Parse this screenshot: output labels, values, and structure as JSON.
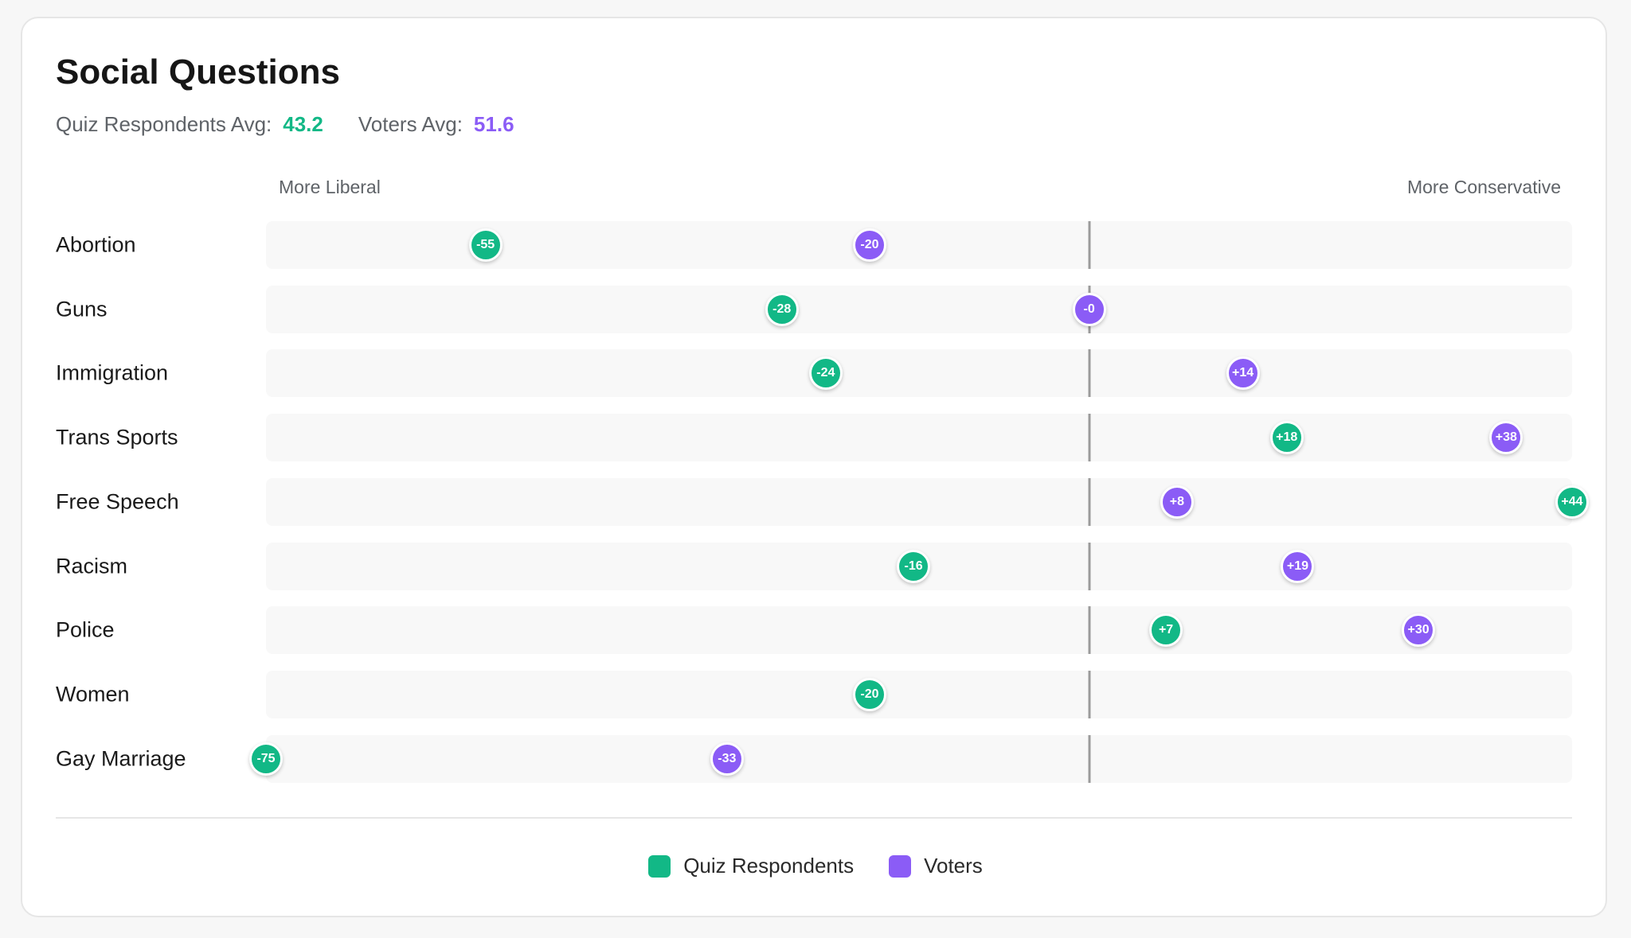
{
  "colors": {
    "quiz": "#12b886",
    "voters": "#8b5cf6"
  },
  "header": {
    "title": "Social Questions",
    "quiz_avg_label": "Quiz Respondents Avg:",
    "quiz_avg_value": "43.2",
    "voters_avg_label": "Voters Avg:",
    "voters_avg_value": "51.6"
  },
  "axis": {
    "left_label": "More Liberal",
    "right_label": "More Conservative"
  },
  "legend": {
    "quiz": "Quiz Respondents",
    "voters": "Voters"
  },
  "chart_data": {
    "type": "scatter",
    "xlim": [
      -75,
      44
    ],
    "series": [
      {
        "name": "Quiz Respondents",
        "key": "quiz"
      },
      {
        "name": "Voters",
        "key": "voters"
      }
    ],
    "rows": [
      {
        "label": "Abortion",
        "quiz": -55,
        "quiz_text": "-55",
        "voters": -20,
        "voters_text": "-20"
      },
      {
        "label": "Guns",
        "quiz": -28,
        "quiz_text": "-28",
        "voters": 0,
        "voters_text": "-0"
      },
      {
        "label": "Immigration",
        "quiz": -24,
        "quiz_text": "-24",
        "voters": 14,
        "voters_text": "+14"
      },
      {
        "label": "Trans Sports",
        "quiz": 18,
        "quiz_text": "+18",
        "voters": 38,
        "voters_text": "+38"
      },
      {
        "label": "Free Speech",
        "quiz": 44,
        "quiz_text": "+44",
        "voters": 8,
        "voters_text": "+8"
      },
      {
        "label": "Racism",
        "quiz": -16,
        "quiz_text": "-16",
        "voters": 19,
        "voters_text": "+19"
      },
      {
        "label": "Police",
        "quiz": 7,
        "quiz_text": "+7",
        "voters": 30,
        "voters_text": "+30"
      },
      {
        "label": "Women",
        "quiz": -20,
        "quiz_text": "-20",
        "voters": null,
        "voters_text": null
      },
      {
        "label": "Gay Marriage",
        "quiz": -75,
        "quiz_text": "-75",
        "voters": -33,
        "voters_text": "-33"
      }
    ]
  }
}
